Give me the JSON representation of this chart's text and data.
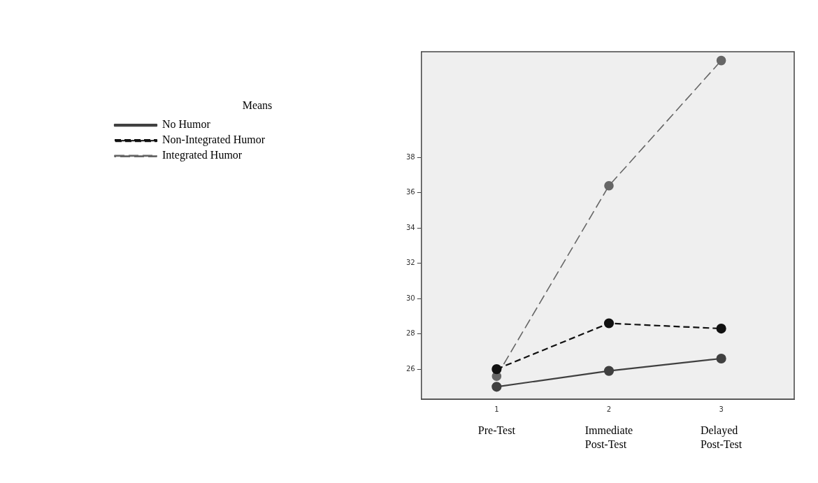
{
  "chart_data": {
    "type": "line",
    "legend_title": "Means",
    "legend": "left",
    "marker": "circle",
    "grid": false,
    "x": [
      1,
      2,
      3
    ],
    "xlim": [
      0.33,
      3.65
    ],
    "xticks": [
      1,
      2,
      3
    ],
    "ylim": [
      24.3,
      44
    ],
    "yticks": [
      26,
      28,
      30,
      32,
      34,
      36,
      38
    ],
    "series": [
      {
        "name": "No Humor",
        "color": "#404040",
        "line_style": "solid",
        "values": [
          25.0,
          25.9,
          26.6
        ]
      },
      {
        "name": "Non-Integrated Humor",
        "color": "#111111",
        "line_style": "dashed",
        "values": [
          26.0,
          28.6,
          28.3
        ]
      },
      {
        "name": "Integrated Humor",
        "color": "#666666",
        "line_style": "dashed",
        "values": [
          25.6,
          36.4,
          43.5
        ]
      }
    ],
    "annotations": [
      "Pre-Test",
      "Immediate Post-Test",
      "Delayed Post-Test"
    ]
  }
}
